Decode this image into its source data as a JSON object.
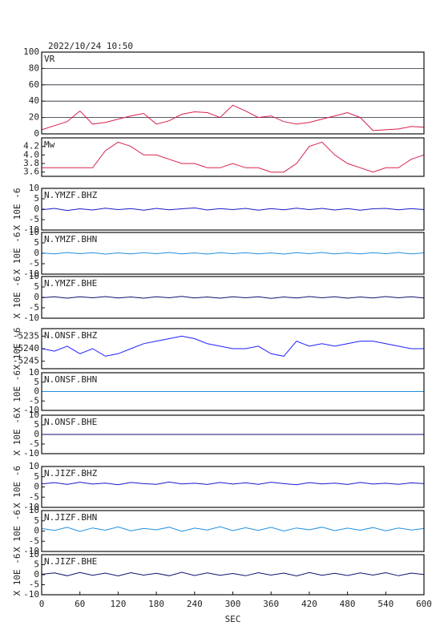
{
  "title": "2022/10/24 10:50",
  "chart_data": [
    {
      "type": "line",
      "title": "VR",
      "color": "#d8204a",
      "grid": true,
      "xlim": [
        0,
        600
      ],
      "ylim": [
        0,
        100
      ],
      "yticks": [
        0,
        20,
        40,
        60,
        80,
        100
      ],
      "x": [
        0,
        20,
        40,
        60,
        80,
        100,
        120,
        140,
        160,
        180,
        200,
        220,
        240,
        260,
        280,
        300,
        320,
        340,
        360,
        380,
        400,
        420,
        440,
        460,
        480,
        500,
        520,
        540,
        560,
        580,
        600
      ],
      "values": [
        5,
        10,
        15,
        28,
        12,
        14,
        18,
        22,
        25,
        12,
        16,
        24,
        27,
        26,
        20,
        35,
        28,
        20,
        22,
        15,
        12,
        14,
        18,
        22,
        26,
        20,
        4,
        5,
        6,
        9,
        8
      ]
    },
    {
      "type": "line",
      "title": "Mw",
      "color": "#d8204a",
      "xlim": [
        0,
        600
      ],
      "ylim": [
        3.5,
        4.4
      ],
      "yticks": [
        3.6,
        3.8,
        {
          "value": 4,
          "label": "4.0"
        },
        4.2
      ],
      "x": [
        0,
        20,
        40,
        60,
        80,
        100,
        120,
        140,
        160,
        180,
        200,
        220,
        240,
        260,
        280,
        300,
        320,
        340,
        360,
        380,
        400,
        420,
        440,
        460,
        480,
        500,
        520,
        540,
        560,
        580,
        600
      ],
      "values": [
        3.7,
        3.7,
        3.7,
        3.7,
        3.7,
        4.1,
        4.3,
        4.2,
        4.0,
        4.0,
        3.9,
        3.8,
        3.8,
        3.7,
        3.7,
        3.8,
        3.7,
        3.7,
        3.6,
        3.6,
        3.8,
        4.2,
        4.3,
        4.0,
        3.8,
        3.7,
        3.6,
        3.7,
        3.7,
        3.9,
        4.0
      ]
    },
    {
      "type": "line",
      "title": "N.YMZF.BHZ",
      "ylabel": "X 10E -6",
      "color": "#1a1acc",
      "xlim": [
        0,
        600
      ],
      "ylim": [
        -10,
        10
      ],
      "yticks": [
        -10,
        -5,
        0,
        5,
        10
      ],
      "x": [
        0,
        20,
        40,
        60,
        80,
        100,
        120,
        140,
        160,
        180,
        200,
        220,
        240,
        260,
        280,
        300,
        320,
        340,
        360,
        380,
        400,
        420,
        440,
        460,
        480,
        500,
        520,
        540,
        560,
        580,
        600
      ],
      "values": [
        -0.3,
        0.4,
        -0.6,
        0.2,
        -0.4,
        0.5,
        -0.2,
        0.3,
        -0.5,
        0.4,
        -0.3,
        0.2,
        0.6,
        -0.4,
        0.3,
        -0.2,
        0.4,
        -0.5,
        0.3,
        -0.3,
        0.5,
        -0.2,
        0.4,
        -0.4,
        0.3,
        -0.5,
        0.2,
        0.4,
        -0.3,
        0.3,
        -0.2
      ]
    },
    {
      "type": "line",
      "title": "N.YMZF.BHN",
      "ylabel": "X 10E -6",
      "color": "#1e90e0",
      "xlim": [
        0,
        600
      ],
      "ylim": [
        -10,
        10
      ],
      "yticks": [
        -10,
        -5,
        0,
        5,
        10
      ],
      "x": [
        0,
        20,
        40,
        60,
        80,
        100,
        120,
        140,
        160,
        180,
        200,
        220,
        240,
        260,
        280,
        300,
        320,
        340,
        360,
        380,
        400,
        420,
        440,
        460,
        480,
        500,
        520,
        540,
        560,
        580,
        600
      ],
      "values": [
        0.2,
        -0.3,
        0.4,
        -0.2,
        0.3,
        -0.4,
        0.2,
        -0.3,
        0.3,
        -0.2,
        0.4,
        -0.3,
        0.2,
        -0.4,
        0.3,
        -0.2,
        0.3,
        -0.3,
        0.2,
        -0.4,
        0.3,
        -0.2,
        0.4,
        -0.3,
        0.2,
        -0.3,
        0.3,
        -0.2,
        0.4,
        -0.3,
        0.2
      ]
    },
    {
      "type": "line",
      "title": "N.YMZF.BHE",
      "ylabel": "X 10E -6",
      "color": "#101070",
      "xlim": [
        0,
        600
      ],
      "ylim": [
        -10,
        10
      ],
      "yticks": [
        -10,
        -5,
        0,
        5,
        10
      ],
      "x": [
        0,
        20,
        40,
        60,
        80,
        100,
        120,
        140,
        160,
        180,
        200,
        220,
        240,
        260,
        280,
        300,
        320,
        340,
        360,
        380,
        400,
        420,
        440,
        460,
        480,
        500,
        520,
        540,
        560,
        580,
        600
      ],
      "values": [
        -0.2,
        0.3,
        -0.4,
        0.3,
        -0.2,
        0.4,
        -0.3,
        0.2,
        -0.4,
        0.3,
        -0.2,
        0.5,
        -0.3,
        0.2,
        -0.4,
        0.3,
        -0.2,
        0.3,
        -0.5,
        0.2,
        -0.3,
        0.4,
        -0.2,
        0.3,
        -0.4,
        0.2,
        -0.3,
        0.4,
        -0.2,
        0.3,
        -0.3
      ]
    },
    {
      "type": "line",
      "title": "N.ONSF.BHZ",
      "ylabel": "X 10E -6",
      "color": "#1f1fff",
      "xlim": [
        0,
        600
      ],
      "ylim": [
        -5248,
        -5232
      ],
      "yticks": [
        -5245,
        -5240,
        -5235
      ],
      "x": [
        0,
        20,
        40,
        60,
        80,
        100,
        120,
        140,
        160,
        180,
        200,
        220,
        240,
        260,
        280,
        300,
        320,
        340,
        360,
        380,
        400,
        420,
        440,
        460,
        480,
        500,
        520,
        540,
        560,
        580,
        600
      ],
      "values": [
        -5240,
        -5241,
        -5239,
        -5242,
        -5240,
        -5243,
        -5242,
        -5240,
        -5238,
        -5237,
        -5236,
        -5235,
        -5236,
        -5238,
        -5239,
        -5240,
        -5240,
        -5239,
        -5242,
        -5243,
        -5237,
        -5239,
        -5238,
        -5239,
        -5238,
        -5237,
        -5237,
        -5238,
        -5239,
        -5240,
        -5240
      ]
    },
    {
      "type": "line",
      "title": "N.ONSF.BHN",
      "ylabel": "X 10E -6",
      "color": "#1e90e0",
      "xlim": [
        0,
        600
      ],
      "ylim": [
        -10,
        10
      ],
      "yticks": [
        -10,
        -5,
        0,
        5,
        10
      ],
      "x": [
        0,
        600
      ],
      "values": [
        0,
        0
      ]
    },
    {
      "type": "line",
      "title": "N.ONSF.BHE",
      "ylabel": "X 10E -6",
      "color": "#101070",
      "xlim": [
        0,
        600
      ],
      "ylim": [
        -10,
        10
      ],
      "yticks": [
        -10,
        -5,
        0,
        5,
        10
      ],
      "x": [
        0,
        600
      ],
      "values": [
        0,
        0
      ]
    },
    {
      "type": "line",
      "title": "N.JIZF.BHZ",
      "ylabel": "X 10E -6",
      "color": "#1a1acc",
      "xlim": [
        0,
        600
      ],
      "ylim": [
        -10,
        10
      ],
      "yticks": [
        -10,
        -5,
        0,
        5,
        10
      ],
      "x": [
        0,
        20,
        40,
        60,
        80,
        100,
        120,
        140,
        160,
        180,
        200,
        220,
        240,
        260,
        280,
        300,
        320,
        340,
        360,
        380,
        400,
        420,
        440,
        460,
        480,
        500,
        520,
        540,
        560,
        580,
        600
      ],
      "values": [
        1.5,
        2.1,
        1.2,
        2.3,
        1.4,
        1.9,
        1.1,
        2.2,
        1.6,
        1.3,
        2.4,
        1.5,
        1.8,
        1.2,
        2.2,
        1.4,
        2.0,
        1.3,
        2.3,
        1.6,
        1.1,
        2.1,
        1.5,
        1.9,
        1.2,
        2.2,
        1.4,
        1.8,
        1.3,
        2.0,
        1.6
      ]
    },
    {
      "type": "line",
      "title": "N.JIZF.BHN",
      "ylabel": "X 10E -6",
      "color": "#1e90e0",
      "xlim": [
        0,
        600
      ],
      "ylim": [
        -10,
        10
      ],
      "yticks": [
        -10,
        -5,
        0,
        5,
        10
      ],
      "x": [
        0,
        20,
        40,
        60,
        80,
        100,
        120,
        140,
        160,
        180,
        200,
        220,
        240,
        260,
        280,
        300,
        320,
        340,
        360,
        380,
        400,
        420,
        440,
        460,
        480,
        500,
        520,
        540,
        560,
        580,
        600
      ],
      "values": [
        1.2,
        0.3,
        1.8,
        -0.2,
        1.5,
        0.4,
        2.0,
        0.1,
        1.3,
        0.6,
        1.9,
        -0.1,
        1.4,
        0.5,
        2.1,
        0.2,
        1.6,
        0.3,
        1.8,
        0.0,
        1.5,
        0.6,
        1.9,
        0.2,
        1.4,
        0.4,
        1.7,
        0.1,
        1.5,
        0.5,
        1.2
      ]
    },
    {
      "type": "line",
      "title": "N.JIZF.BHE",
      "ylabel": "X 10E -6",
      "color": "#101070",
      "xlim": [
        0,
        600
      ],
      "ylim": [
        -10,
        10
      ],
      "yticks": [
        -10,
        -5,
        0,
        5,
        10
      ],
      "xticks": [
        0,
        60,
        120,
        180,
        240,
        300,
        360,
        420,
        480,
        540,
        600
      ],
      "xlabel": "SEC",
      "x": [
        0,
        20,
        40,
        60,
        80,
        100,
        120,
        140,
        160,
        180,
        200,
        220,
        240,
        260,
        280,
        300,
        320,
        340,
        360,
        380,
        400,
        420,
        440,
        460,
        480,
        500,
        520,
        540,
        560,
        580,
        600
      ],
      "values": [
        0.2,
        0.9,
        -0.5,
        1.1,
        -0.3,
        0.8,
        -0.6,
        1.0,
        -0.2,
        0.7,
        -0.5,
        1.2,
        -0.4,
        0.9,
        -0.3,
        0.6,
        -0.5,
        1.0,
        -0.2,
        0.8,
        -0.6,
        1.1,
        -0.3,
        0.7,
        -0.4,
        0.9,
        -0.2,
        1.0,
        -0.5,
        0.8,
        0.1
      ]
    }
  ]
}
